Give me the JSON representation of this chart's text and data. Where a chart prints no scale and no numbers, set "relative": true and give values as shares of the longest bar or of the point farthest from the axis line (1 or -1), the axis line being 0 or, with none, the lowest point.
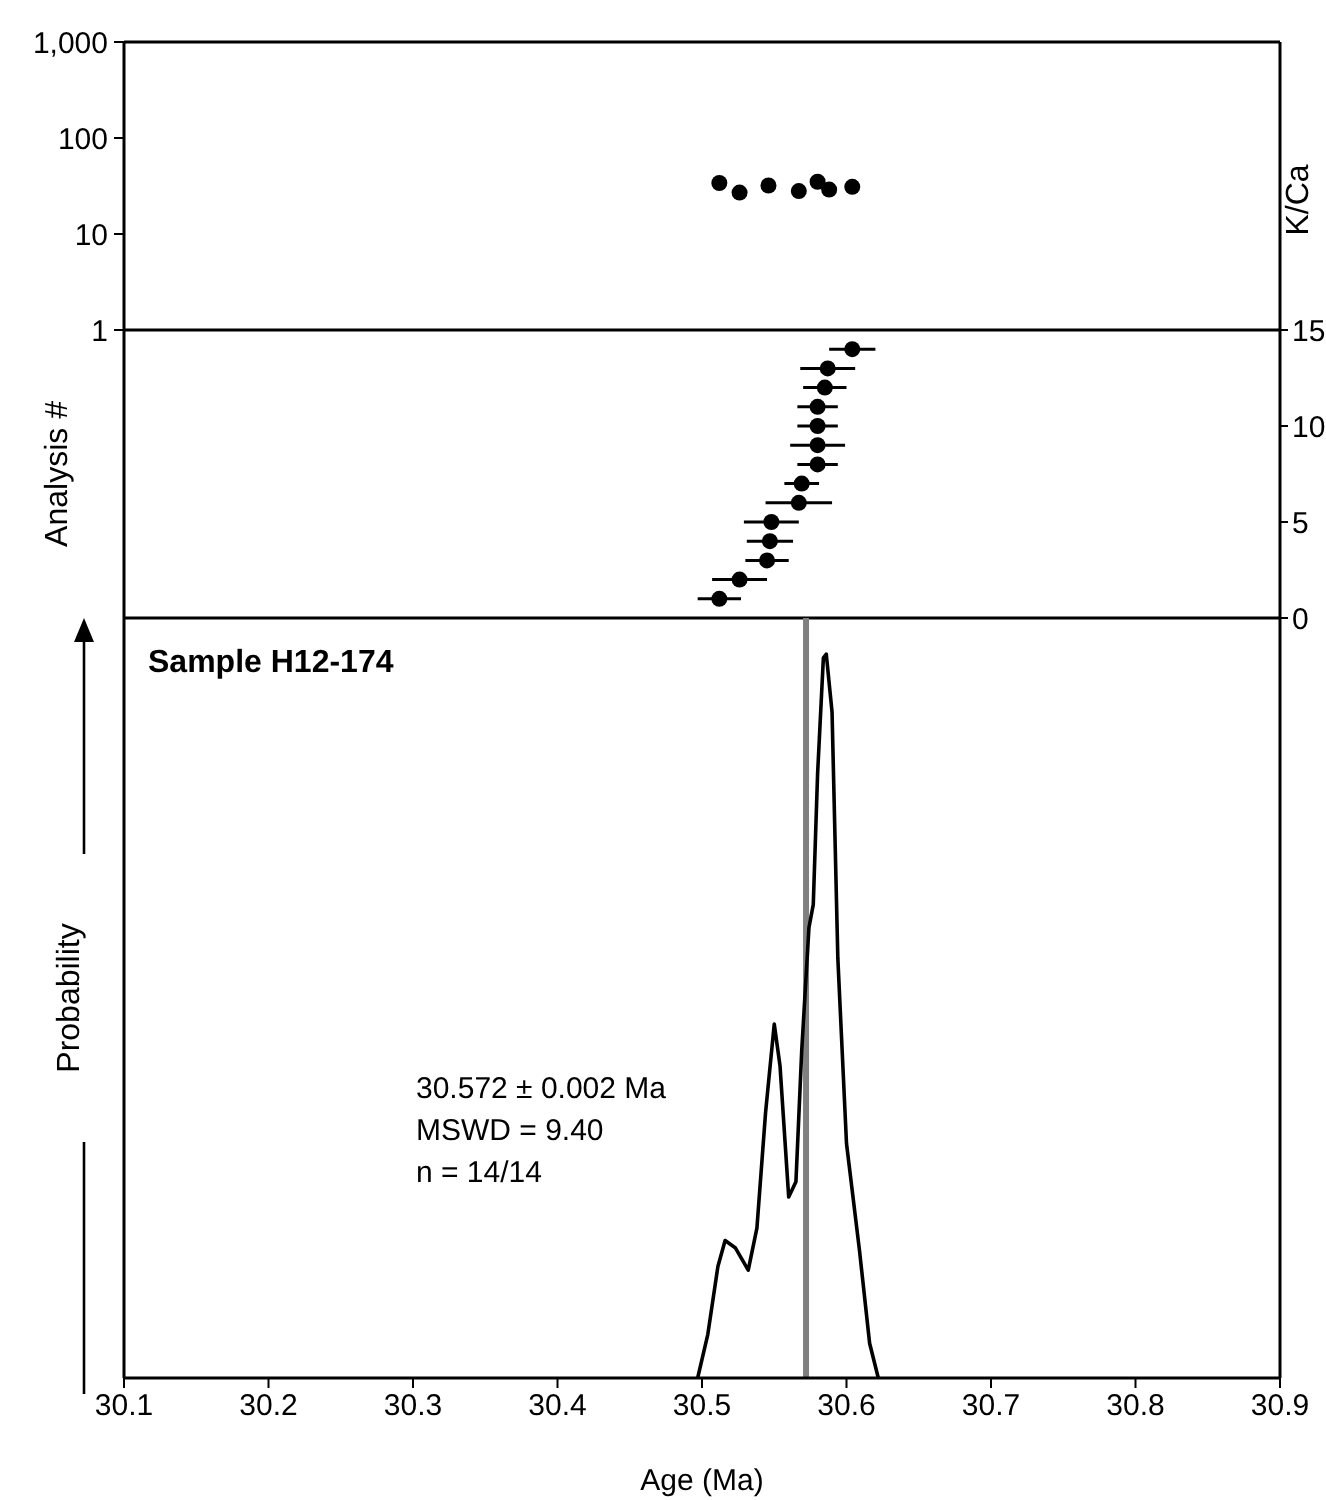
{
  "chart_data": [
    {
      "type": "scatter",
      "ylabel": "K/Ca",
      "log": "y",
      "marker": "circle",
      "tick_labels": "y",
      "xlim": [
        30.1,
        30.9
      ],
      "ylim": [
        1,
        1000
      ],
      "yticks": [
        1,
        10,
        100,
        {
          "value": 1000,
          "label": "1,000"
        }
      ],
      "x": [
        30.512,
        30.526,
        30.546,
        30.567,
        30.58,
        30.588,
        30.604
      ],
      "series": [
        {
          "color": "#000000",
          "values": [
            34,
            27,
            32,
            28,
            35,
            29,
            31
          ]
        }
      ]
    },
    {
      "type": "scatter",
      "ylabel": "Analysis #",
      "marker": "circle",
      "tick_labels": "y",
      "xlim": [
        30.1,
        30.9
      ],
      "ylim": [
        0,
        15
      ],
      "yticks": [
        0,
        5,
        10,
        15
      ],
      "x": [
        30.512,
        30.526,
        30.545,
        30.547,
        30.548,
        30.567,
        30.569,
        30.58,
        30.58,
        30.58,
        30.58,
        30.585,
        30.587,
        30.604
      ],
      "series": [
        {
          "color": "#000000",
          "values": [
            1,
            2,
            3,
            4,
            5,
            6,
            7,
            8,
            9,
            10,
            11,
            12,
            13,
            14
          ],
          "xerrors": [
            0.015,
            0.019,
            0.015,
            0.016,
            0.019,
            0.023,
            0.012,
            0.014,
            0.019,
            0.014,
            0.014,
            0.015,
            0.019,
            0.016
          ]
        }
      ]
    },
    {
      "type": "line",
      "title": "Sample H12-174",
      "xlabel": "Age (Ma)",
      "ylabel": "Probability",
      "relative": true,
      "marker": "none",
      "line_style": "solid",
      "tick_labels": "x",
      "xlim": [
        30.1,
        30.9
      ],
      "xticks": [
        30.1,
        30.2,
        30.3,
        30.4,
        30.5,
        30.6,
        30.7,
        30.8,
        30.9
      ],
      "x": [
        30.497,
        30.504,
        30.511,
        30.516,
        30.523,
        30.532,
        30.538,
        30.544,
        30.55,
        30.554,
        30.56,
        30.565,
        30.569,
        30.574,
        30.577,
        30.58,
        30.584,
        30.586,
        30.59,
        30.594,
        30.6,
        30.609,
        30.616,
        30.622
      ],
      "series": [
        {
          "color": "#000000",
          "values": [
            0,
            0.06,
            0.154,
            0.19,
            0.18,
            0.149,
            0.207,
            0.367,
            0.489,
            0.431,
            0.25,
            0.271,
            0.452,
            0.622,
            0.654,
            0.835,
            0.995,
            1,
            0.92,
            0.58,
            0.324,
            0.176,
            0.048,
            0
          ]
        }
      ],
      "ref_lines": [
        {
          "axis": "x",
          "value": 30.572,
          "color": "#808080"
        }
      ],
      "annotations": [
        "30.572 ± 0.002 Ma",
        "MSWD = 9.40",
        "n = 14/14"
      ]
    }
  ]
}
